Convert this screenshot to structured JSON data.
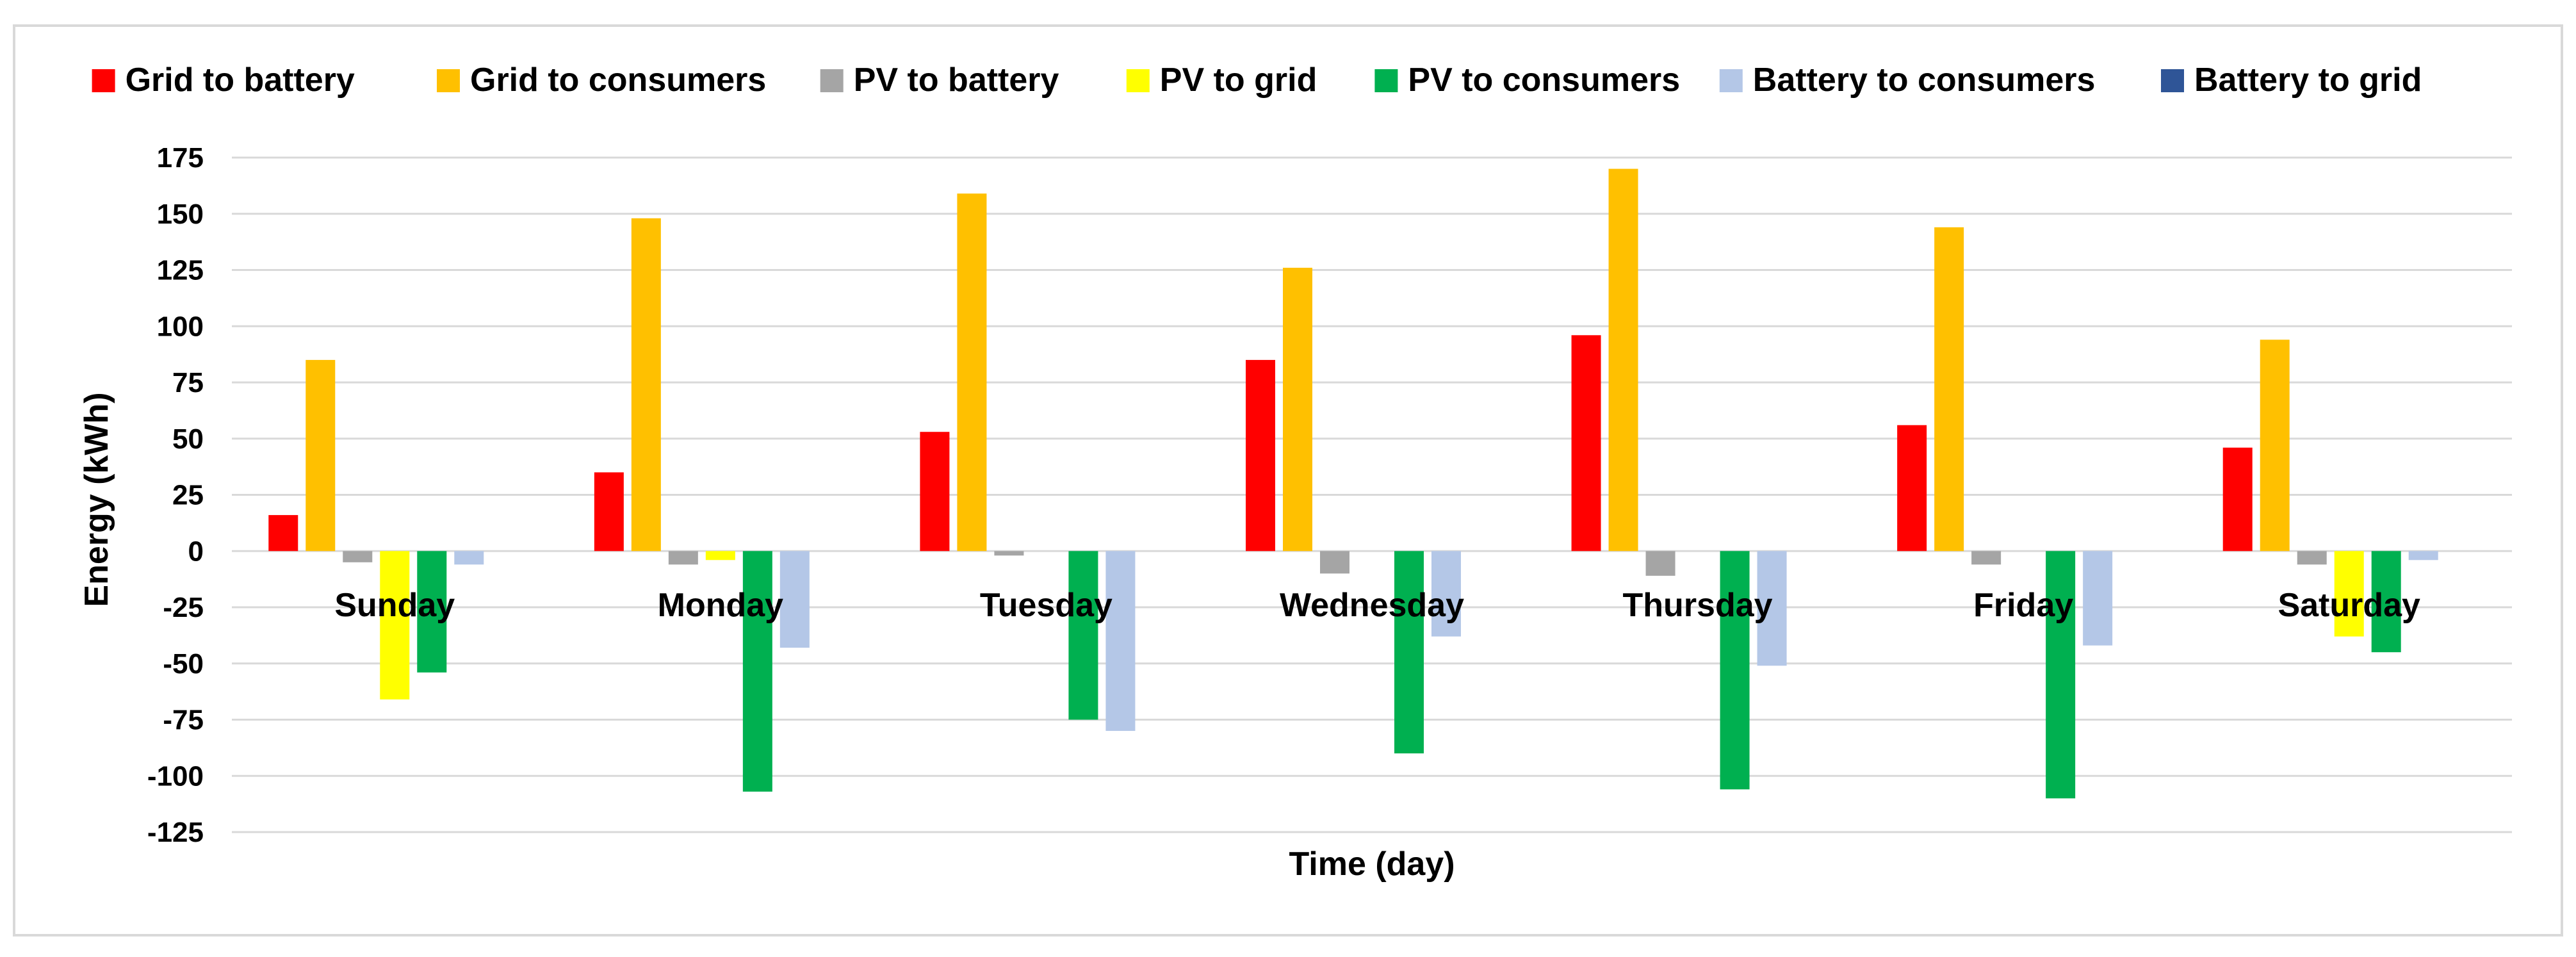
{
  "chart_data": {
    "type": "bar",
    "title": "",
    "xlabel": "Time (day)",
    "ylabel": "Energy (kWh)",
    "ylim": [
      -125,
      175
    ],
    "yticks": [
      175,
      150,
      125,
      100,
      75,
      50,
      25,
      0,
      -25,
      -50,
      -75,
      -100,
      -125
    ],
    "grid": true,
    "legend_position": "top",
    "categories": [
      "Sunday",
      "Monday",
      "Tuesday",
      "Wednesday",
      "Thursday",
      "Friday",
      "Saturday"
    ],
    "series": [
      {
        "name": "Grid to battery",
        "color": "#ff0000",
        "values": [
          16,
          35,
          53,
          85,
          96,
          56,
          46
        ]
      },
      {
        "name": "Grid to consumers",
        "color": "#ffc000",
        "values": [
          85,
          148,
          159,
          126,
          170,
          144,
          94
        ]
      },
      {
        "name": "PV to battery",
        "color": "#a5a5a5",
        "values": [
          -5,
          -6,
          -2,
          -10,
          -11,
          -6,
          -6
        ]
      },
      {
        "name": "PV to grid",
        "color": "#ffff00",
        "values": [
          -66,
          -4,
          0,
          0,
          0,
          0,
          -38
        ]
      },
      {
        "name": "PV to consumers",
        "color": "#00b050",
        "values": [
          -54,
          -107,
          -75,
          -90,
          -106,
          -110,
          -45
        ]
      },
      {
        "name": "Battery to consumers",
        "color": "#b4c7e7",
        "values": [
          -6,
          -43,
          -80,
          -38,
          -51,
          -42,
          -4
        ]
      },
      {
        "name": "Battery to grid",
        "color": "#2f5597",
        "values": [
          0,
          0,
          0,
          0,
          0,
          0,
          0
        ]
      }
    ]
  }
}
